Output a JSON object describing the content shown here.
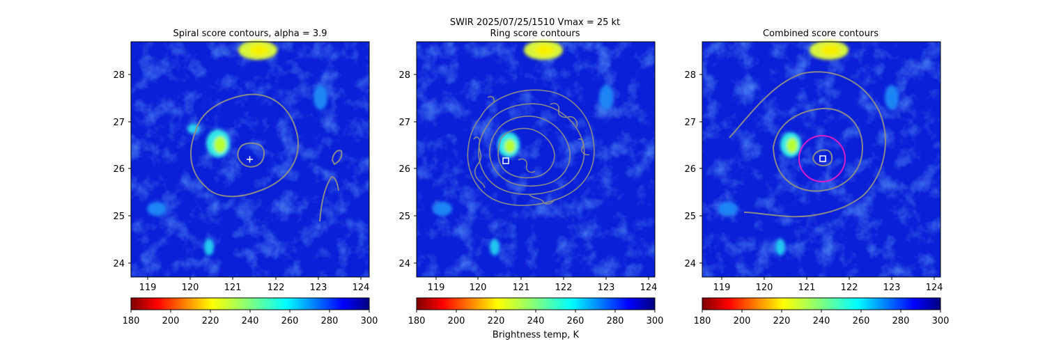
{
  "figure": {
    "suptitle_line1": "SWIR  2025/07/25/1510    Vmax = 25 kt",
    "colorbar_label": "Brightness temp, K"
  },
  "chart_data": [
    {
      "type": "heatmap",
      "title": "Spiral score contours, alpha =  3.9",
      "xlim": [
        118.6,
        124.15
      ],
      "ylim": [
        23.7,
        28.7
      ],
      "xticks": [
        "119",
        "120",
        "121",
        "122",
        "123",
        "124"
      ],
      "yticks": [
        "24",
        "25",
        "26",
        "27",
        "28"
      ],
      "colormap": "jet_r",
      "color_range": [
        180,
        300
      ],
      "colorbar_ticks": [
        "180",
        "200",
        "220",
        "240",
        "260",
        "280",
        "300"
      ],
      "center_marker": {
        "type": "plus",
        "lon": 121.35,
        "lat": 26.2
      }
    },
    {
      "type": "heatmap",
      "title": "Ring score contours",
      "xlim": [
        118.6,
        124.15
      ],
      "ylim": [
        23.7,
        28.7
      ],
      "xticks": [
        "119",
        "120",
        "121",
        "122",
        "123",
        "124"
      ],
      "yticks": [
        "24",
        "25",
        "26",
        "27",
        "28"
      ],
      "colormap": "jet_r",
      "color_range": [
        180,
        300
      ],
      "colorbar_ticks": [
        "180",
        "200",
        "220",
        "240",
        "260",
        "280",
        "300"
      ],
      "center_marker": {
        "type": "square",
        "lon": 120.65,
        "lat": 26.17
      }
    },
    {
      "type": "heatmap",
      "title": "Combined score contours",
      "xlim": [
        118.6,
        124.15
      ],
      "ylim": [
        23.7,
        28.7
      ],
      "xticks": [
        "119",
        "120",
        "121",
        "122",
        "123",
        "124"
      ],
      "yticks": [
        "24",
        "25",
        "26",
        "27",
        "28"
      ],
      "colormap": "jet_r",
      "color_range": [
        180,
        300
      ],
      "colorbar_ticks": [
        "180",
        "200",
        "220",
        "240",
        "260",
        "280",
        "300"
      ],
      "center_marker": {
        "type": "square",
        "lon": 121.37,
        "lat": 26.22
      },
      "ring": {
        "lon": 121.37,
        "lat": 26.22,
        "radius_deg": 0.5,
        "color": "#d81ec8"
      }
    }
  ],
  "colors": {
    "contour": "#8a8a8a",
    "marker": "#ffffff",
    "ring": "#d81ec8"
  }
}
